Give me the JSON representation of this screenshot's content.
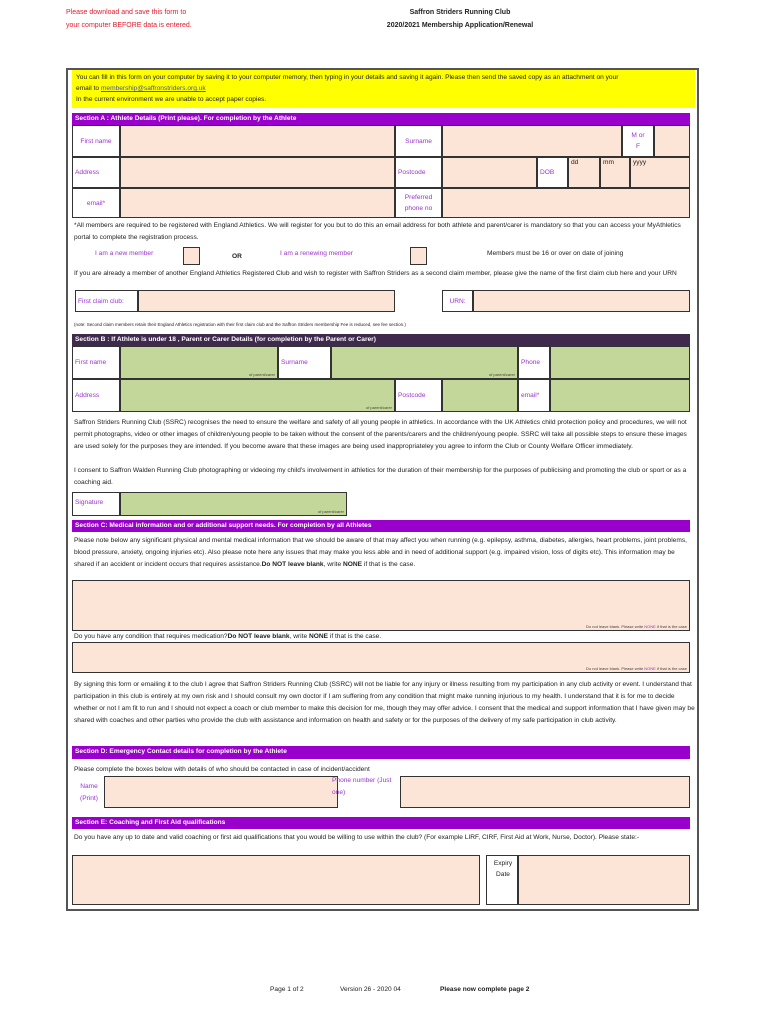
{
  "header": {
    "warning_line1": "Please download and save this form to",
    "warning_line2": "your computer BEFORE data is entered.",
    "title1": "Saffron Striders Running Club",
    "title2": "2020/2021 Membership Application/Renewal"
  },
  "intro": {
    "line1": "You can fill in this form on your computer by saving it to your computer memory, then typing in your details and saving it again. Please then send the saved copy as an attachment on your",
    "line2_prefix": "email to ",
    "email": "membership@saffronstriders.org.uk",
    "line3": "In the current environment we are unable to accept paper copies."
  },
  "section_a": {
    "title": "Section A : Athlete Details (Print please). For completion by the Athlete",
    "first_name": "First name",
    "surname": "Surname",
    "m_or_f": "M or F",
    "address": "Address",
    "postcode": "Postcode",
    "dob": "DOB",
    "dd": "dd",
    "mm": "mm",
    "yyyy": "yyyy",
    "email": "email*",
    "phone": "Preferred phone no",
    "footnote": "*All members are required to be registered with England Athletics. We will register for you but to do this an email address for both athlete and parent/carer is mandatory so that you can access your MyAthletics portal to complete the registration process.",
    "new_member": "I am a new member",
    "or": "OR",
    "renewing_member": "I am a renewing member",
    "age_note": "Members must be 16 or over on date of joining",
    "second_claim": "If you are already a member of another England Athletics Registered Club and wish to register with Saffron Striders as a second claim member, please give the name of the first claim club here and your URN",
    "first_claim_club": "First claim club:",
    "urn": "URN:",
    "note": "(note: Second claim members retain their England Athletics registration with their first claim club and the Saffron Striders membership Fee is reduced, see fee section.)"
  },
  "section_b": {
    "title": "Section B :  If Athlete is under 18 , Parent or Carer Details (for completion by the Parent or Carer)",
    "first_name": "First name",
    "surname": "Surname",
    "phone": "Phone",
    "address": "Address",
    "postcode": "Postcode",
    "email": "email*",
    "of_parent": "of parent/carer",
    "welfare": "Saffron Striders Running Club (SSRC) recognises the need to ensure the welfare and safety of all young people in athletics. In accordance with the UK Athletics child protection policy and procedures, we will not permit photographs, video or other images of children/young people to be taken without the consent of the parents/carers and the children/young people. SSRC will take all possible steps to ensure these images are used solely for the purposes they are intended.  If you become aware that these images are being used inappropriateley you agree to inform the Club or County Welfare Officer immediately.",
    "consent": "I consent to Saffron Walden Running Club photographing or videoing my child's involvement in athletics for the duration of their membership for the purposes of publicising and promoting the club or sport or as a coaching aid.",
    "signature": "Signature"
  },
  "section_c": {
    "title": "Section C: Medical information and or additional support needs. For completion by all Athletes",
    "text": "Please note below any significant physical and mental medical information that we should be aware of that may affect you when running (e.g. epilepsy, asthma, diabetes, allergies, heart problems, joint problems, blood pressure, anxiety, ongoing injuries etc). Also please note here any issues that may make you less able and in need of additional support (e.g. impaired vision, loss of digits etc). This information may be shared if an accident or incident occurs that requires assistance.",
    "do_not": "Do NOT leave blank",
    "write": ", write ",
    "none": "NONE",
    "if_case": " if that is the case.",
    "hint_a": "Do not leave blank. Please write ",
    "hint_none": "NONE",
    "hint_b": " if that is the case",
    "medication": "Do you have any condition that requires medication?",
    "disclaimer": "By signing this form or emailing it to the club I agree that Saffron Striders Running Club (SSRC) will not be liable for any injury or illness resulting from my participation in any club activity or event. I understand that participation in this club is entirely at my own risk and I should consult my own doctor if I am suffering from any condition that might make running injurious to my health.  I understand that it is for me  to decide whether or not I am fit to run and I should not expect a coach or club member to make this decision for me, though they may offer advice. I consent that the medical and support information that I have given may be shared with coaches and other parties who provide the club with assistance and information on health and safety or for the purposes of the delivery of my safe participation in club activity."
  },
  "section_d": {
    "title": "Section D: Emergency Contact details for completion by the Athlete",
    "text": "Please complete the boxes below with details of who should be contacted in case of incident/accident",
    "name": "Name (Print)",
    "phone": "Phone number (Just one)"
  },
  "section_e": {
    "title": "Section E: Coaching and First Aid qualifications",
    "text": "Do you have any up to date and valid coaching or first aid qualifications that you would be  willing to use within  the club? (For example LIRF, CIRF, First Aid at Work, Nurse, Doctor). Please state:-",
    "expiry": "Expiry Date"
  },
  "footer": {
    "page": "Page 1 of 2",
    "version": "Version 26 -  2020 04",
    "next": "Please now complete page 2"
  },
  "colors": {
    "section_bar": "#9900cc",
    "section_b_bar": "#3f2a4d",
    "athlete_field": "#fce4d6",
    "parent_field": "#c4d79b",
    "label": "#9933cc",
    "warning": "#e8192c",
    "intro_bg": "#ffff00"
  }
}
